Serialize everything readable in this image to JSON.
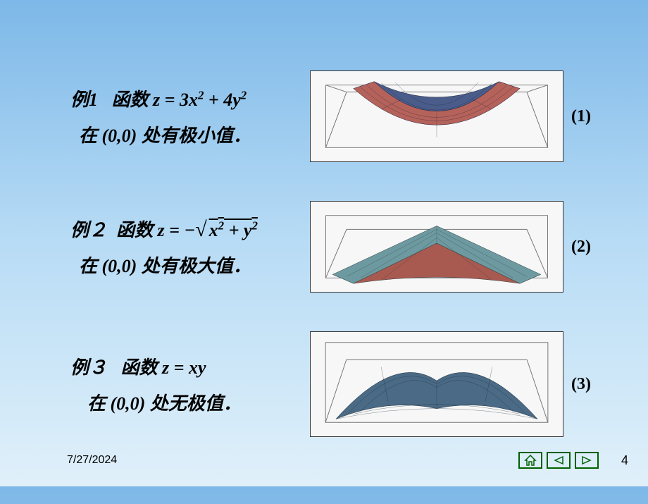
{
  "examples": [
    {
      "label": "例1",
      "func_prefix": "函数",
      "formula_html": "z = 3x<span class='sup'>2</span> + 4y<span class='sup'>2</span>",
      "line2_prefix": "在",
      "point": "(0,0)",
      "line2_suffix": "处有极小值．",
      "graph_label": "(1)",
      "surface": {
        "type": "paraboloid-up",
        "fill_left": "#4a5d8a",
        "fill_right": "#b5625a",
        "stroke": "#1a2340",
        "box_stroke": "#777"
      }
    },
    {
      "label": "例２",
      "func_prefix": "函数",
      "formula_html": "z = −<span class='radical'></span><span class='sqrt'>x<span class='sup'>2</span> + y<span class='sup'>2</span></span>",
      "line2_prefix": "在",
      "point": "(0,0)",
      "line2_suffix": "处有极大值．",
      "graph_label": "(2)",
      "surface": {
        "type": "cone-down",
        "fill_top": "#6d9aa0",
        "fill_bottom": "#a85a50",
        "stroke": "#2a3a3e",
        "box_stroke": "#777"
      }
    },
    {
      "label": "例３",
      "func_prefix": "函数",
      "formula_html": "z = xy",
      "line2_prefix": "在",
      "point": "(0,0)",
      "line2_suffix": "处无极值．",
      "graph_label": "(3)",
      "surface": {
        "type": "saddle",
        "fill": "#4a6a85",
        "stroke": "#1a2a3a",
        "box_stroke": "#777"
      }
    }
  ],
  "footer": {
    "date": "7/27/2024",
    "page": "4"
  },
  "nav": {
    "home_icon": "home-icon",
    "prev_icon": "prev-icon",
    "next_icon": "next-icon",
    "color": "#006000"
  },
  "style": {
    "bg_gradient": [
      "#7db8e8",
      "#b8dcf5",
      "#e0f0fa"
    ],
    "text_color": "#000000",
    "font_size_main": 26,
    "font_weight": "bold",
    "font_style": "italic"
  }
}
